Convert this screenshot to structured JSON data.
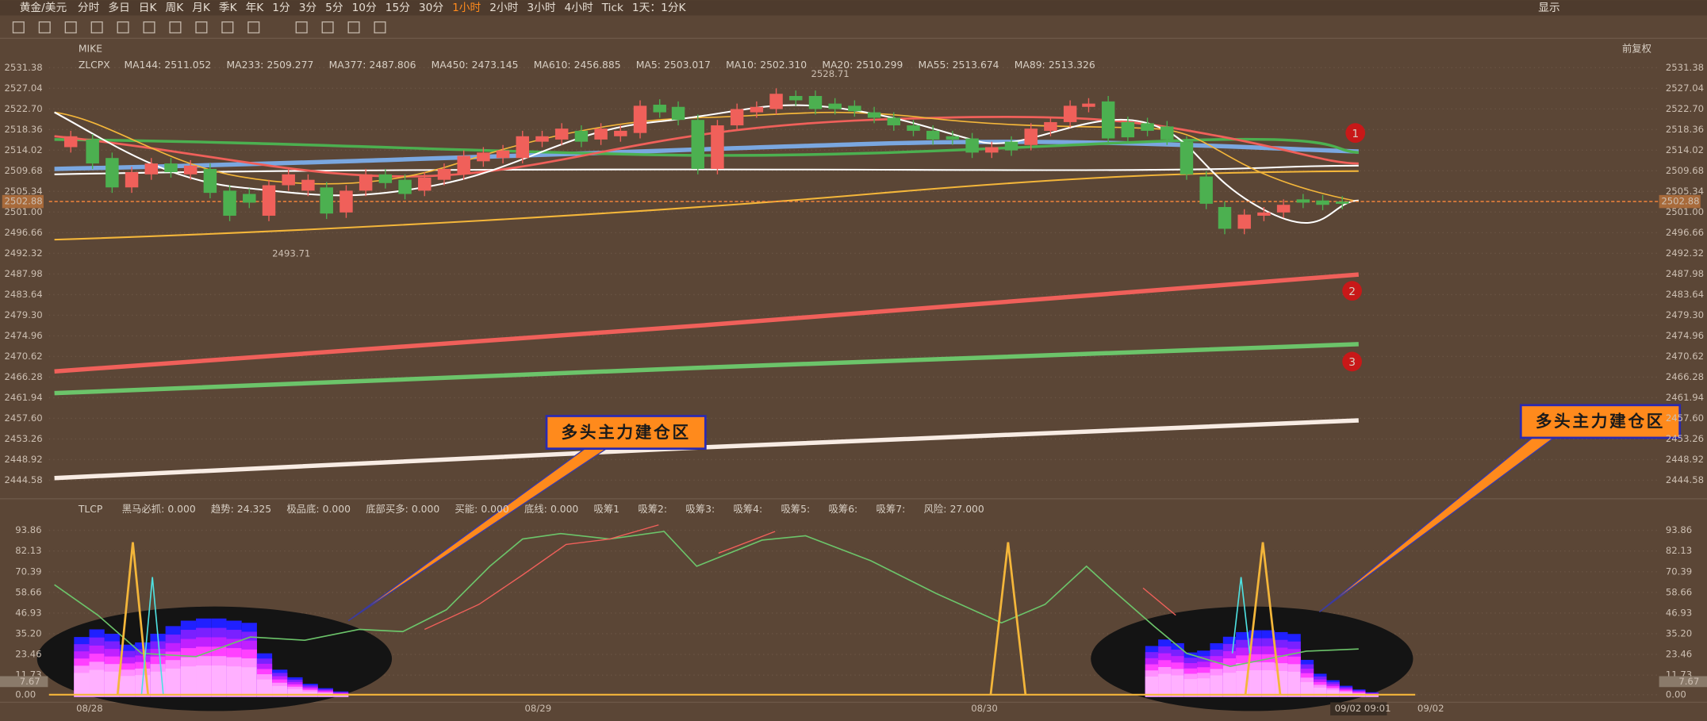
{
  "toolbar": {
    "symbol": "黄金/美元",
    "periods": [
      "分时",
      "多日",
      "日K",
      "周K",
      "月K",
      "季K",
      "年K",
      "1分",
      "3分",
      "5分",
      "10分",
      "15分",
      "30分",
      "1小时",
      "2小时",
      "3小时",
      "4小时",
      "Tick",
      "1天：1分K"
    ],
    "active_period": 13,
    "display": "显示"
  },
  "main_panel": {
    "indicator": "MIKE",
    "adjust": "前复权",
    "ma_name": "ZLCPX",
    "ma_items": [
      {
        "label": "MA144:",
        "value": "2511.052",
        "color": "#ffffff"
      },
      {
        "label": "MA233:",
        "value": "2509.277",
        "color": "#f4b63a"
      },
      {
        "label": "MA377:",
        "value": "2487.806",
        "color": "#f0605a"
      },
      {
        "label": "MA450:",
        "value": "2473.145",
        "color": "#6cc46a"
      },
      {
        "label": "MA610:",
        "value": "2456.885",
        "color": "#ffffff"
      },
      {
        "label": "MA5:",
        "value": "2503.017",
        "color": "#ffffff"
      },
      {
        "label": "MA10:",
        "value": "2502.310",
        "color": "#f4b63a"
      },
      {
        "label": "MA20:",
        "value": "2510.299",
        "color": "#f0605a"
      },
      {
        "label": "MA55:",
        "value": "2513.674",
        "color": "#6cc46a"
      },
      {
        "label": "MA89:",
        "value": "2513.326",
        "color": "#7aa7e0"
      }
    ],
    "price_axis": [
      "2531.38",
      "2527.04",
      "2522.70",
      "2518.36",
      "2514.02",
      "2509.68",
      "2505.34",
      "2501.00",
      "2496.66",
      "2492.32",
      "2487.98",
      "2483.64",
      "2479.30",
      "2474.96",
      "2470.62",
      "2466.28",
      "2461.94",
      "2457.60",
      "2453.26",
      "2448.92",
      "2444.58"
    ],
    "current_price": "2502.88",
    "low_label": "2493.71",
    "high_label": "2528.71",
    "markers": [
      "1",
      "2",
      "3"
    ]
  },
  "callouts": [
    "多头主力建仓区",
    "多头主力建仓区"
  ],
  "sub_panel": {
    "indicator": "TLCP",
    "items": [
      {
        "label": "黑马必抓:",
        "value": "0.000",
        "color": "#6cc46a"
      },
      {
        "label": "趋势:",
        "value": "24.325",
        "color": "#f0605a"
      },
      {
        "label": "极品底:",
        "value": "0.000",
        "color": "#7aa7e0"
      },
      {
        "label": "底部买多:",
        "value": "0.000",
        "color": "#f0605a"
      },
      {
        "label": "买能:",
        "value": "0.000",
        "color": "#f4b63a"
      },
      {
        "label": "底线:",
        "value": "0.000",
        "color": "#4ee0e0"
      },
      {
        "label": "吸筹1",
        "value": "",
        "color": "#7a6cf0"
      },
      {
        "label": "吸筹2:",
        "value": "",
        "color": "#b060f0"
      },
      {
        "label": "吸筹3:",
        "value": "",
        "color": "#d060e0"
      },
      {
        "label": "吸筹4:",
        "value": "",
        "color": "#ff60ff"
      },
      {
        "label": "吸筹5:",
        "value": "",
        "color": "#ff80ff"
      },
      {
        "label": "吸筹6:",
        "value": "",
        "color": "#ffa0ff"
      },
      {
        "label": "吸筹7:",
        "value": "",
        "color": "#ffc0ff"
      },
      {
        "label": "风险:",
        "value": "27.000",
        "color": "#6cc46a"
      }
    ],
    "axis": [
      "93.86",
      "82.13",
      "70.39",
      "58.66",
      "46.93",
      "35.20",
      "23.46",
      "11.73",
      "0.00"
    ],
    "current": "7.67"
  },
  "dates": [
    "08/28",
    "08/29",
    "08/30",
    "09/02"
  ],
  "cursor_time": "09/02 09:01"
}
